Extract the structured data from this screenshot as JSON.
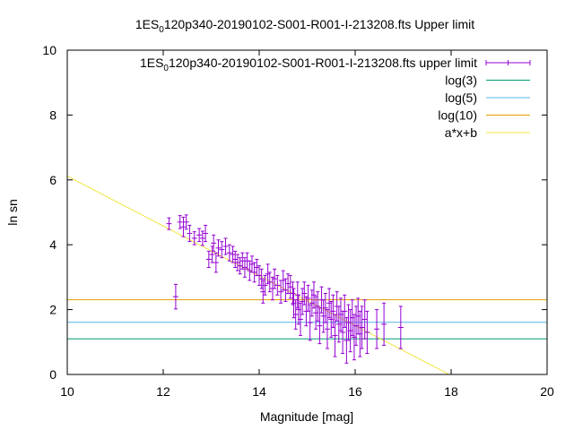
{
  "chart_data": {
    "type": "scatter",
    "title": {
      "pre": "1ES",
      "sub": "0",
      "post": "120p340-20190102-S001-R001-I-213208.fts Upper limit"
    },
    "xlabel": "Magnitude [mag]",
    "ylabel": "ln sn",
    "xlim": [
      10,
      20
    ],
    "ylim": [
      0,
      10
    ],
    "xticks": [
      "10",
      "12",
      "14",
      "16",
      "18",
      "20"
    ],
    "yticks": [
      "0",
      "2",
      "4",
      "6",
      "8",
      "10"
    ],
    "legend_position": "top-right",
    "grid": false,
    "series": [
      {
        "name": {
          "pre": "1ES",
          "sub": "0",
          "post": "120p340-20190102-S001-R001-I-213208.fts upper limit"
        },
        "kind": "points-errorbars",
        "color": "#9400d3",
        "points": [
          [
            12.12,
            4.65,
            0.18
          ],
          [
            12.26,
            2.4,
            0.38
          ],
          [
            12.35,
            4.7,
            0.2
          ],
          [
            12.42,
            4.55,
            0.3
          ],
          [
            12.48,
            4.7,
            0.22
          ],
          [
            12.55,
            4.35,
            0.25
          ],
          [
            12.65,
            4.2,
            0.2
          ],
          [
            12.75,
            4.3,
            0.2
          ],
          [
            12.82,
            4.2,
            0.22
          ],
          [
            12.88,
            4.35,
            0.25
          ],
          [
            12.95,
            3.55,
            0.25
          ],
          [
            13.02,
            3.7,
            0.25
          ],
          [
            13.05,
            4.05,
            0.25
          ],
          [
            13.1,
            3.45,
            0.3
          ],
          [
            13.15,
            3.9,
            0.25
          ],
          [
            13.22,
            3.85,
            0.25
          ],
          [
            13.3,
            3.95,
            0.25
          ],
          [
            13.38,
            3.75,
            0.25
          ],
          [
            13.45,
            3.7,
            0.25
          ],
          [
            13.5,
            3.55,
            0.25
          ],
          [
            13.55,
            3.45,
            0.25
          ],
          [
            13.6,
            3.35,
            0.25
          ],
          [
            13.65,
            3.5,
            0.25
          ],
          [
            13.7,
            3.3,
            0.3
          ],
          [
            13.75,
            3.5,
            0.25
          ],
          [
            13.8,
            3.2,
            0.3
          ],
          [
            13.85,
            3.4,
            0.25
          ],
          [
            13.9,
            3.15,
            0.3
          ],
          [
            13.95,
            3.3,
            0.25
          ],
          [
            14.0,
            3.05,
            0.3
          ],
          [
            14.05,
            2.95,
            0.3
          ],
          [
            14.08,
            2.55,
            0.35
          ],
          [
            14.12,
            2.75,
            0.3
          ],
          [
            14.18,
            3.1,
            0.3
          ],
          [
            14.22,
            2.85,
            0.3
          ],
          [
            14.28,
            2.65,
            0.35
          ],
          [
            14.32,
            2.95,
            0.3
          ],
          [
            14.38,
            2.75,
            0.3
          ],
          [
            14.45,
            2.55,
            0.35
          ],
          [
            14.5,
            2.9,
            0.3
          ],
          [
            14.55,
            2.6,
            0.35
          ],
          [
            14.6,
            2.8,
            0.3
          ],
          [
            14.65,
            2.7,
            0.35
          ],
          [
            14.7,
            2.5,
            0.35
          ],
          [
            14.72,
            2.2,
            0.45
          ],
          [
            14.76,
            1.85,
            0.45
          ],
          [
            14.8,
            2.45,
            0.4
          ],
          [
            14.82,
            2.0,
            0.45
          ],
          [
            14.86,
            1.7,
            0.5
          ],
          [
            14.9,
            2.25,
            0.4
          ],
          [
            14.94,
            2.5,
            0.35
          ],
          [
            14.98,
            1.95,
            0.45
          ],
          [
            15.02,
            2.35,
            0.4
          ],
          [
            15.06,
            1.6,
            0.55
          ],
          [
            15.1,
            2.2,
            0.4
          ],
          [
            15.14,
            2.45,
            0.4
          ],
          [
            15.18,
            1.9,
            0.5
          ],
          [
            15.22,
            2.1,
            0.45
          ],
          [
            15.26,
            1.5,
            0.55
          ],
          [
            15.3,
            2.3,
            0.4
          ],
          [
            15.34,
            1.8,
            0.5
          ],
          [
            15.38,
            2.05,
            0.45
          ],
          [
            15.42,
            1.4,
            0.6
          ],
          [
            15.46,
            2.2,
            0.45
          ],
          [
            15.5,
            1.7,
            0.55
          ],
          [
            15.54,
            1.95,
            0.5
          ],
          [
            15.58,
            1.2,
            0.65
          ],
          [
            15.62,
            2.1,
            0.45
          ],
          [
            15.66,
            1.55,
            0.55
          ],
          [
            15.7,
            1.85,
            0.5
          ],
          [
            15.74,
            1.3,
            0.65
          ],
          [
            15.78,
            1.95,
            0.5
          ],
          [
            15.82,
            1.05,
            0.7
          ],
          [
            15.86,
            1.6,
            0.55
          ],
          [
            15.9,
            1.35,
            0.65
          ],
          [
            15.94,
            1.75,
            0.55
          ],
          [
            15.98,
            1.15,
            0.7
          ],
          [
            16.02,
            1.5,
            0.6
          ],
          [
            16.06,
            1.8,
            0.55
          ],
          [
            16.1,
            1.25,
            0.7
          ],
          [
            16.14,
            1.45,
            0.65
          ],
          [
            16.2,
            1.7,
            0.6
          ],
          [
            16.25,
            1.3,
            0.65
          ],
          [
            16.45,
            1.4,
            0.6
          ],
          [
            16.6,
            1.55,
            0.65
          ],
          [
            16.95,
            1.45,
            0.65
          ]
        ]
      },
      {
        "name": "log(3)",
        "kind": "hline",
        "value": 1.0986,
        "color": "#009e73"
      },
      {
        "name": "log(5)",
        "kind": "hline",
        "value": 1.6094,
        "color": "#56b4e9"
      },
      {
        "name": "log(10)",
        "kind": "hline",
        "value": 2.3026,
        "color": "#e69f00"
      },
      {
        "name": "a*x+b",
        "kind": "fit-line",
        "a": -0.7684,
        "b": 13.8,
        "color": "#f0e442"
      }
    ]
  }
}
